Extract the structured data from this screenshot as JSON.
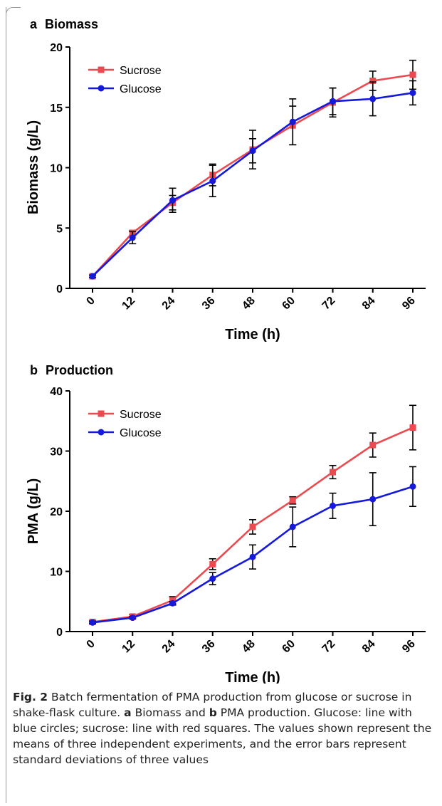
{
  "colors": {
    "sucrose": "#ea4a50",
    "glucose": "#1519d9",
    "error_bar": "#000000",
    "axis": "#000000"
  },
  "panels": [
    {
      "letter": "a",
      "name": "Biomass",
      "legend_position": "top-left",
      "chart_data": {
        "type": "line",
        "title": "",
        "xlabel": "Time (h)",
        "ylabel": "Biomass (g/L)",
        "categories": [
          "0",
          "12",
          "24",
          "36",
          "48",
          "60",
          "72",
          "84",
          "96"
        ],
        "x": [
          0,
          12,
          24,
          36,
          48,
          60,
          72,
          84,
          96
        ],
        "ylim": [
          0,
          20
        ],
        "yticks": [
          "0",
          "5",
          "10",
          "15",
          "20"
        ],
        "grid": false,
        "series": [
          {
            "name": "Sucrose",
            "marker": "square",
            "values": [
              1.0,
              4.6,
              7.1,
              9.4,
              11.5,
              13.5,
              15.4,
              17.2,
              17.7
            ],
            "errors": [
              0.1,
              0.2,
              0.6,
              0.9,
              1.6,
              1.6,
              1.2,
              0.8,
              1.2
            ]
          },
          {
            "name": "Glucose",
            "marker": "circle",
            "values": [
              1.0,
              4.2,
              7.3,
              8.9,
              11.4,
              13.8,
              15.5,
              15.7,
              16.2
            ],
            "errors": [
              0.1,
              0.5,
              1.0,
              1.3,
              1.0,
              1.9,
              1.1,
              1.4,
              1.0
            ]
          }
        ]
      }
    },
    {
      "letter": "b",
      "name": "Production",
      "legend_position": "top-left",
      "chart_data": {
        "type": "line",
        "title": "",
        "xlabel": "Time (h)",
        "ylabel": "PMA (g/L)",
        "categories": [
          "0",
          "12",
          "24",
          "36",
          "48",
          "60",
          "72",
          "84",
          "96"
        ],
        "x": [
          0,
          12,
          24,
          36,
          48,
          60,
          72,
          84,
          96
        ],
        "ylim": [
          0,
          40
        ],
        "yticks": [
          "0",
          "10",
          "20",
          "30",
          "40"
        ],
        "grid": false,
        "series": [
          {
            "name": "Sucrose",
            "marker": "square",
            "values": [
              1.6,
              2.5,
              5.2,
              11.2,
              17.4,
              21.8,
              26.5,
              31.0,
              33.9
            ],
            "errors": [
              0.2,
              0.3,
              0.6,
              0.9,
              1.2,
              0.6,
              1.1,
              2.0,
              3.7
            ]
          },
          {
            "name": "Glucose",
            "marker": "circle",
            "values": [
              1.5,
              2.3,
              4.7,
              8.8,
              12.4,
              17.4,
              20.9,
              22.0,
              24.1
            ],
            "errors": [
              0.2,
              0.2,
              0.3,
              1.0,
              2.0,
              3.3,
              2.1,
              4.4,
              3.3
            ]
          }
        ]
      }
    }
  ],
  "caption": {
    "fig_label": "Fig. 2",
    "text_1": " Batch fermentation of PMA production from glucose or sucrose in shake-flask culture. ",
    "letter_a": "a",
    "text_2": " Biomass and ",
    "letter_b": "b",
    "text_3": " PMA production. Glucose: line with blue circles; sucrose: line with red squares. The values shown represent the means of three independent experiments, and the error bars represent standard deviations of three values"
  }
}
